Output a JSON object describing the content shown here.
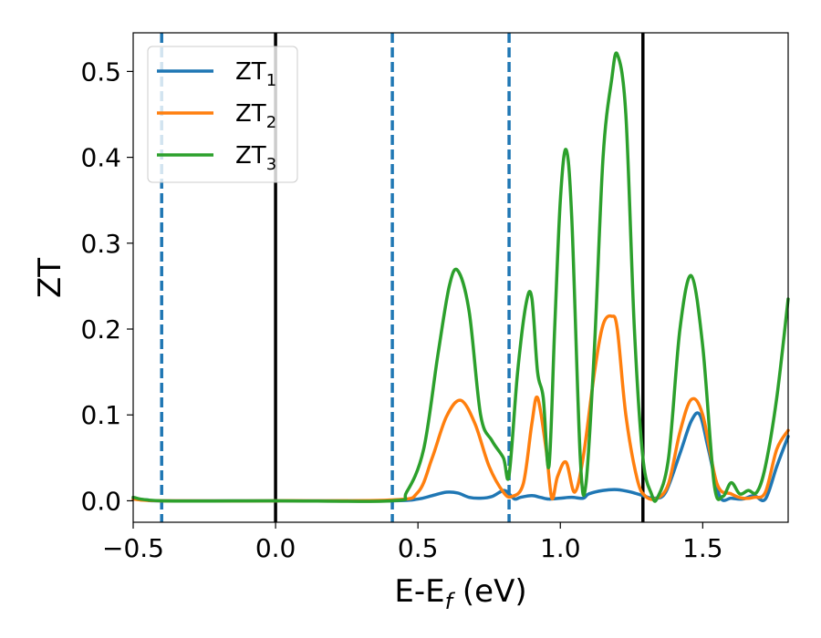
{
  "chart_data": {
    "type": "line",
    "title": "",
    "xlabel": {
      "main": "E-E",
      "sub": "f",
      "unit": " (eV)"
    },
    "ylabel": "ZT",
    "xlim": [
      -0.5,
      1.8
    ],
    "ylim": [
      -0.025,
      0.545
    ],
    "xticks": [
      -0.5,
      0.0,
      0.5,
      1.0,
      1.5
    ],
    "xtick_labels": [
      "−0.5",
      "0.0",
      "0.5",
      "1.0",
      "1.5"
    ],
    "yticks": [
      0.0,
      0.1,
      0.2,
      0.3,
      0.4,
      0.5
    ],
    "ytick_labels": [
      "0.0",
      "0.1",
      "0.2",
      "0.3",
      "0.4",
      "0.5"
    ],
    "grid": false,
    "legend_position": "top-left",
    "vlines": [
      {
        "x": -0.4,
        "style": "dashed",
        "color": "#1f77b4"
      },
      {
        "x": 0.0,
        "style": "solid",
        "color": "#000000"
      },
      {
        "x": 0.41,
        "style": "dashed",
        "color": "#1f77b4"
      },
      {
        "x": 0.82,
        "style": "dashed",
        "color": "#1f77b4"
      },
      {
        "x": 1.29,
        "style": "solid",
        "color": "#000000"
      }
    ],
    "series": [
      {
        "name": "ZT",
        "sub": "1",
        "color": "#1f77b4",
        "x": [
          -0.5,
          -0.45,
          -0.4,
          0.0,
          0.41,
          0.5,
          0.55,
          0.6,
          0.64,
          0.68,
          0.72,
          0.76,
          0.8,
          0.82,
          0.84,
          0.86,
          0.9,
          0.93,
          0.96,
          1.0,
          1.04,
          1.08,
          1.1,
          1.15,
          1.2,
          1.25,
          1.29,
          1.33,
          1.37,
          1.42,
          1.46,
          1.49,
          1.52,
          1.56,
          1.6,
          1.64,
          1.68,
          1.72,
          1.76,
          1.8
        ],
        "y": [
          0.002,
          0.001,
          0.0,
          0.0,
          0.0,
          0.002,
          0.006,
          0.01,
          0.009,
          0.004,
          0.003,
          0.005,
          0.012,
          0.008,
          0.002,
          0.004,
          0.006,
          0.004,
          0.002,
          0.003,
          0.004,
          0.003,
          0.008,
          0.012,
          0.013,
          0.01,
          0.006,
          0.003,
          0.01,
          0.055,
          0.093,
          0.1,
          0.06,
          0.005,
          0.003,
          0.002,
          0.006,
          0.002,
          0.04,
          0.075
        ]
      },
      {
        "name": "ZT",
        "sub": "2",
        "color": "#ff7f0e",
        "x": [
          -0.5,
          -0.4,
          0.0,
          0.41,
          0.5,
          0.55,
          0.6,
          0.65,
          0.7,
          0.75,
          0.8,
          0.83,
          0.87,
          0.9,
          0.92,
          0.95,
          0.97,
          0.99,
          1.02,
          1.05,
          1.08,
          1.12,
          1.15,
          1.18,
          1.2,
          1.23,
          1.27,
          1.3,
          1.34,
          1.38,
          1.42,
          1.46,
          1.5,
          1.55,
          1.6,
          1.64,
          1.68,
          1.72,
          1.76,
          1.8
        ],
        "y": [
          0.002,
          0.0,
          0.0,
          0.001,
          0.01,
          0.05,
          0.098,
          0.117,
          0.09,
          0.04,
          0.01,
          0.005,
          0.02,
          0.09,
          0.12,
          0.06,
          0.003,
          0.028,
          0.045,
          0.01,
          0.05,
          0.15,
          0.205,
          0.215,
          0.2,
          0.1,
          0.025,
          0.005,
          0.003,
          0.02,
          0.08,
          0.118,
          0.1,
          0.02,
          0.008,
          0.003,
          0.004,
          0.01,
          0.06,
          0.082
        ]
      },
      {
        "name": "ZT",
        "sub": "3",
        "color": "#2ca02c",
        "x": [
          -0.5,
          -0.4,
          0.0,
          0.41,
          0.46,
          0.52,
          0.57,
          0.61,
          0.64,
          0.68,
          0.72,
          0.76,
          0.8,
          0.82,
          0.85,
          0.88,
          0.9,
          0.92,
          0.94,
          0.96,
          0.98,
          1.0,
          1.02,
          1.04,
          1.07,
          1.09,
          1.12,
          1.15,
          1.18,
          1.2,
          1.23,
          1.26,
          1.29,
          1.32,
          1.34,
          1.38,
          1.42,
          1.46,
          1.5,
          1.54,
          1.57,
          1.6,
          1.63,
          1.66,
          1.69,
          1.72,
          1.76,
          1.8
        ],
        "y": [
          0.004,
          0.0,
          0.0,
          0.0,
          0.01,
          0.06,
          0.17,
          0.25,
          0.268,
          0.22,
          0.1,
          0.07,
          0.05,
          0.03,
          0.15,
          0.23,
          0.236,
          0.15,
          0.12,
          0.04,
          0.2,
          0.35,
          0.409,
          0.33,
          0.05,
          0.02,
          0.18,
          0.4,
          0.49,
          0.52,
          0.45,
          0.2,
          0.05,
          0.008,
          0.003,
          0.05,
          0.2,
          0.262,
          0.18,
          0.02,
          0.005,
          0.021,
          0.008,
          0.012,
          0.01,
          0.04,
          0.12,
          0.235
        ]
      }
    ]
  }
}
